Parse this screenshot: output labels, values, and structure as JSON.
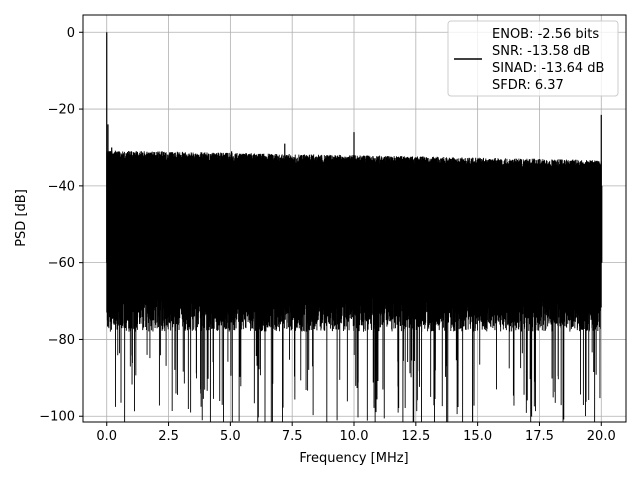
{
  "chart_data": {
    "type": "line",
    "title": "",
    "xlabel": "Frequency [MHz]",
    "ylabel": "PSD [dB]",
    "xlim": [
      -0.96,
      21.0
    ],
    "ylim": [
      -101.5,
      4.5
    ],
    "xticks": [
      0.0,
      2.5,
      5.0,
      7.5,
      10.0,
      12.5,
      15.0,
      17.5,
      20.0
    ],
    "xtick_labels": [
      "0.0",
      "2.5",
      "5.0",
      "7.5",
      "10.0",
      "12.5",
      "15.0",
      "17.5",
      "20.0"
    ],
    "yticks": [
      0,
      -20,
      -40,
      -60,
      -80,
      -100
    ],
    "ytick_labels": [
      "0",
      "−20",
      "−40",
      "−60",
      "−80",
      "−100"
    ],
    "grid": true,
    "legend_position": "top-right",
    "line_color": "#000000",
    "series": [
      {
        "legend_lines": [
          "ENOB: -2.56 bits",
          "SNR: -13.58 dB",
          "SINAD: -13.64 dB",
          "SFDR: 6.37"
        ],
        "noise_floor_upper_db": -36,
        "noise_floor_lower_db": -75,
        "min_dips_db": -96,
        "x": [
          0.0,
          0.0,
          0.05,
          0.1,
          0.2,
          0.5,
          1.0,
          2.0,
          3.0,
          4.0,
          5.0,
          5.05,
          6.0,
          7.2,
          7.25,
          8.0,
          9.0,
          10.0,
          10.05,
          11.0,
          12.0,
          13.0,
          14.0,
          15.0,
          16.0,
          17.0,
          18.0,
          19.0,
          19.95,
          20.0,
          20.02
        ],
        "y": [
          -60,
          0,
          -24,
          -31,
          -30,
          -31,
          -31,
          -32,
          -32,
          -33,
          -33,
          -31,
          -34,
          -29,
          -34,
          -35,
          -35,
          -26,
          -35,
          -36,
          -36,
          -36,
          -36,
          -36,
          -36,
          -36,
          -36,
          -36,
          -38,
          -21.5,
          -40
        ]
      }
    ]
  }
}
